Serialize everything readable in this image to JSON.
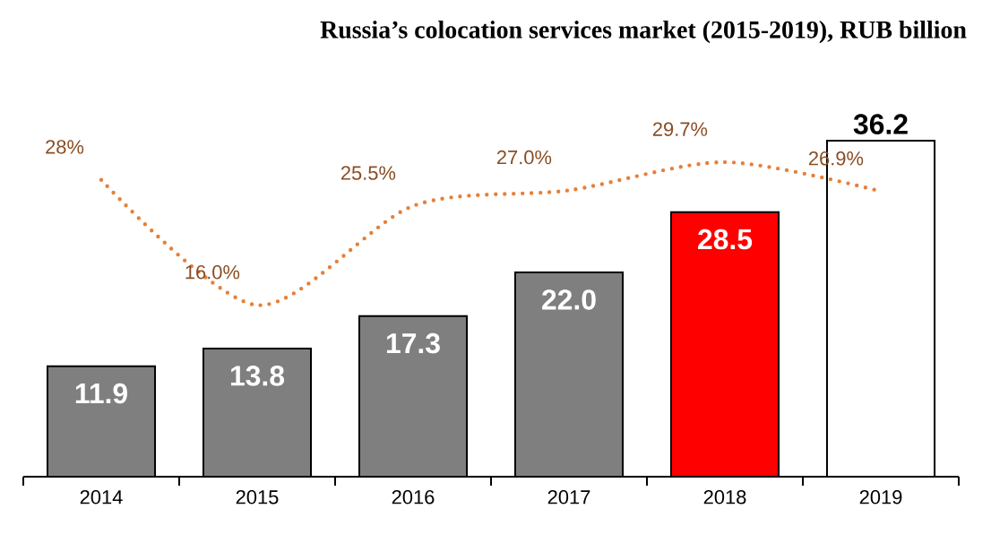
{
  "chart_data": {
    "type": "bar",
    "title": "Russia’s colocation services market (2015-2019), RUB billion",
    "categories": [
      "2014",
      "2015",
      "2016",
      "2017",
      "2018",
      "2019"
    ],
    "series": [
      {
        "values": [
          11.9,
          13.8,
          17.3,
          22.0,
          28.5,
          36.2
        ],
        "value_labels": [
          "11.9",
          "13.8",
          "17.3",
          "22.0",
          "28.5",
          "36.2"
        ],
        "colors": [
          "#7f7f7f",
          "#7f7f7f",
          "#7f7f7f",
          "#7f7f7f",
          "#ff0000",
          "#ffffff"
        ]
      },
      {
        "type": "line",
        "axis": "y2",
        "color": "#e5803a",
        "line_style": "dotted",
        "values": [
          28,
          16.0,
          25.5,
          27.0,
          29.7,
          26.9
        ],
        "value_labels": [
          "28%",
          "16.0%",
          "25.5%",
          "27.0%",
          "29.7%",
          "26.9%"
        ]
      }
    ],
    "marker": "none"
  }
}
